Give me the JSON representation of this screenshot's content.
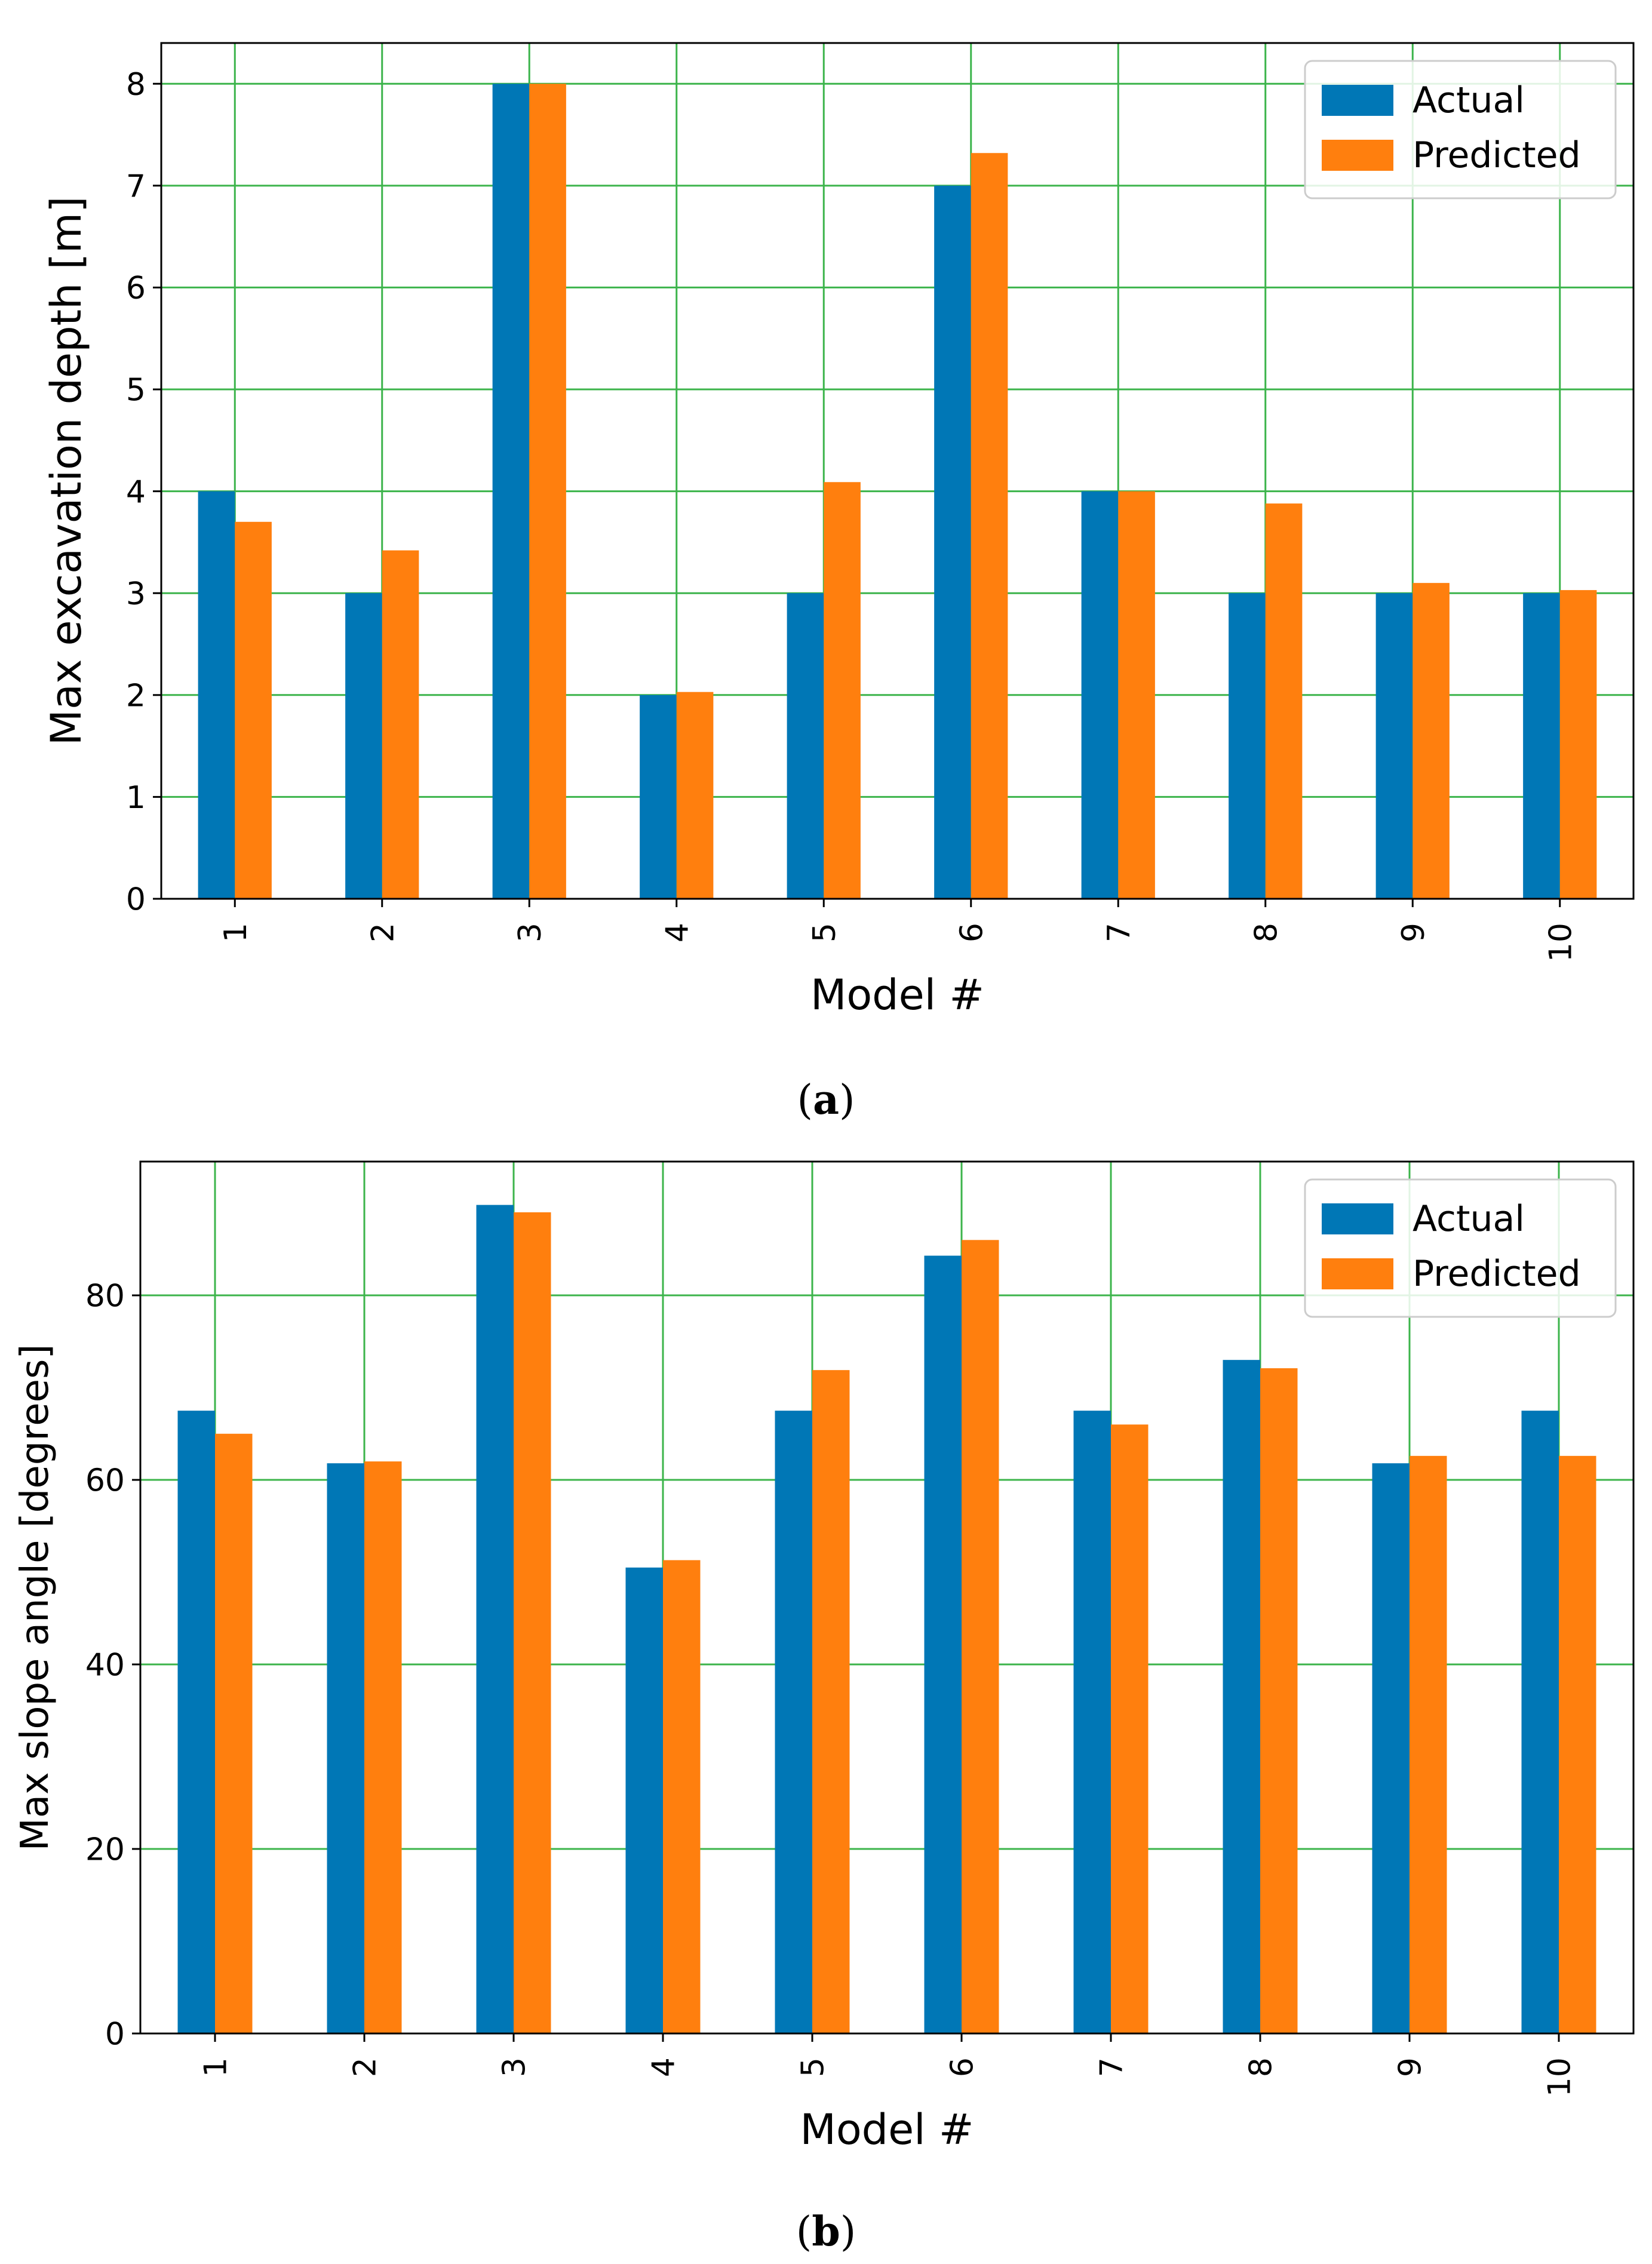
{
  "chart_data": [
    {
      "type": "bar",
      "panel_label": "a",
      "categories": [
        "1",
        "2",
        "3",
        "4",
        "5",
        "6",
        "7",
        "8",
        "9",
        "10"
      ],
      "series": [
        {
          "name": "Actual",
          "values": [
            4,
            3,
            8,
            2,
            3,
            7,
            4,
            3,
            3,
            3
          ]
        },
        {
          "name": "Predicted",
          "values": [
            3.7,
            3.42,
            8.0,
            2.03,
            4.09,
            7.32,
            4.0,
            3.88,
            3.1,
            3.03
          ]
        }
      ],
      "xlabel": "Model #",
      "ylabel": "Max excavation depth [m]",
      "ylim": [
        0,
        8.4
      ],
      "yticks": [
        0,
        1,
        2,
        3,
        4,
        5,
        6,
        7,
        8
      ],
      "grid": true,
      "legend": "top-right"
    },
    {
      "type": "bar",
      "panel_label": "b",
      "categories": [
        "1",
        "2",
        "3",
        "4",
        "5",
        "6",
        "7",
        "8",
        "9",
        "10"
      ],
      "series": [
        {
          "name": "Actual",
          "values": [
            67.5,
            61.8,
            89.8,
            50.5,
            67.5,
            84.3,
            67.5,
            73.0,
            61.8,
            67.5
          ]
        },
        {
          "name": "Predicted",
          "values": [
            65.0,
            62.0,
            89.0,
            51.3,
            71.9,
            86.0,
            66.0,
            72.1,
            62.6,
            62.6
          ]
        }
      ],
      "xlabel": "Model #",
      "ylabel": "Max slope angle [degrees]",
      "ylim": [
        0,
        94.5
      ],
      "yticks": [
        0,
        20,
        40,
        60,
        80
      ],
      "grid": true,
      "legend": "top-right"
    }
  ],
  "colors": {
    "actual": "#0077b6",
    "predicted": "#ff7f0e",
    "grid": "#3cb44b",
    "axis": "#000000"
  }
}
